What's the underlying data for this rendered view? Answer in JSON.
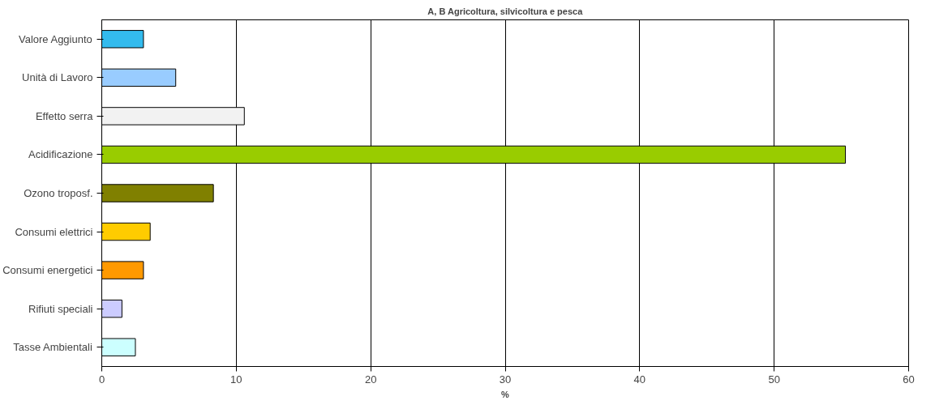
{
  "chart_data": {
    "type": "bar",
    "orientation": "horizontal",
    "title": "A, B Agricoltura, silvicoltura e pesca",
    "xlabel": "%",
    "categories": [
      "Valore Aggiunto",
      "Unità di Lavoro",
      "Effetto serra",
      "Acidificazione",
      "Ozono troposf.",
      "Consumi elettrici",
      "Consumi energetici",
      "Rifiuti speciali",
      "Tasse Ambientali"
    ],
    "values": [
      3.1,
      5.5,
      10.6,
      55.3,
      8.3,
      3.6,
      3.1,
      1.5,
      2.5
    ],
    "colors": [
      "#33bbee",
      "#99ccff",
      "#f2f2f2",
      "#99cc00",
      "#808000",
      "#ffcc00",
      "#ff9900",
      "#ccccff",
      "#ccffff"
    ],
    "xlim": [
      0,
      60
    ],
    "xticks": [
      0,
      10,
      20,
      30,
      40,
      50,
      60
    ],
    "grid": "x"
  }
}
